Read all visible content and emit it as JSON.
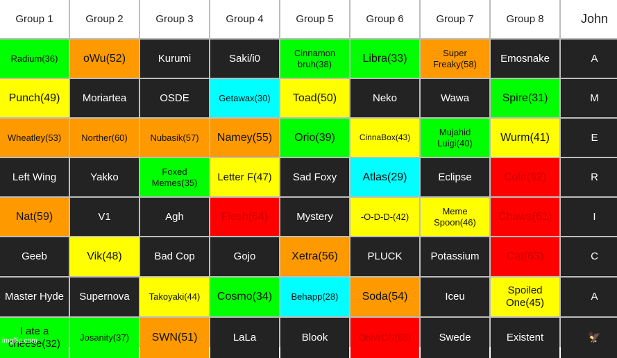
{
  "headers": [
    "Group 1",
    "Group 2",
    "Group 3",
    "Group 4",
    "Group 5",
    "Group 6",
    "Group 7",
    "Group 8",
    "John"
  ],
  "rows": [
    [
      {
        "text": "Radium(36)",
        "color": "green",
        "size": "sm"
      },
      {
        "text": "oWu(52)",
        "color": "orange",
        "size": "lg"
      },
      {
        "text": "Kurumi",
        "color": "dark"
      },
      {
        "text": "Saki/i0",
        "color": "dark"
      },
      {
        "text": "Cinnamon bruh(38)",
        "color": "green",
        "size": "sm"
      },
      {
        "text": "Libra(33)",
        "color": "green",
        "size": "lg"
      },
      {
        "text": "Super Freaky(58)",
        "color": "orange",
        "size": "sm"
      },
      {
        "text": "Emosnake",
        "color": "dark"
      },
      {
        "text": "A",
        "color": "dark"
      }
    ],
    [
      {
        "text": "Punch(49)",
        "color": "yellow",
        "size": "lg"
      },
      {
        "text": "Moriartea",
        "color": "dark"
      },
      {
        "text": "OSDE",
        "color": "dark"
      },
      {
        "text": "Getawax(30)",
        "color": "cyan",
        "size": "sm"
      },
      {
        "text": "Toad(50)",
        "color": "yellow",
        "size": "lg"
      },
      {
        "text": "Neko",
        "color": "dark"
      },
      {
        "text": "Wawa",
        "color": "dark"
      },
      {
        "text": "Spire(31)",
        "color": "green",
        "size": "lg"
      },
      {
        "text": "M",
        "color": "dark"
      }
    ],
    [
      {
        "text": "Wheatley(53)",
        "color": "orange",
        "size": "sm"
      },
      {
        "text": "Norther(60)",
        "color": "orange",
        "size": "sm"
      },
      {
        "text": "Nubasik(57)",
        "color": "orange",
        "size": "sm"
      },
      {
        "text": "Namey(55)",
        "color": "orange",
        "size": "lg"
      },
      {
        "text": "Orio(39)",
        "color": "green",
        "size": "lg"
      },
      {
        "text": "CinnaBox(43)",
        "color": "yellow",
        "size": "xs"
      },
      {
        "text": "Mujahid Luigi(40)",
        "color": "green",
        "size": "sm"
      },
      {
        "text": "Wurm(41)",
        "color": "yellow",
        "size": "lg"
      },
      {
        "text": "E",
        "color": "dark"
      }
    ],
    [
      {
        "text": "Left Wing",
        "color": "dark"
      },
      {
        "text": "Yakko",
        "color": "dark"
      },
      {
        "text": "Foxed Memes(35)",
        "color": "green",
        "size": "sm"
      },
      {
        "text": "Letter F(47)",
        "color": "yellow"
      },
      {
        "text": "Sad Foxy",
        "color": "dark"
      },
      {
        "text": "Atlas(29)",
        "color": "cyan",
        "size": "lg"
      },
      {
        "text": "Eclipse",
        "color": "dark"
      },
      {
        "text": "Cole(62)",
        "color": "red",
        "size": "lg"
      },
      {
        "text": "R",
        "color": "dark"
      }
    ],
    [
      {
        "text": "Nat(59)",
        "color": "orange",
        "size": "lg"
      },
      {
        "text": "V1",
        "color": "dark"
      },
      {
        "text": "Agh",
        "color": "dark"
      },
      {
        "text": "Flesh(64)",
        "color": "red",
        "size": "lg"
      },
      {
        "text": "Mystery",
        "color": "dark"
      },
      {
        "text": "-O-D-D-(42)",
        "color": "yellow",
        "size": "sm"
      },
      {
        "text": "Meme Spoon(46)",
        "color": "yellow",
        "size": "sm"
      },
      {
        "text": "Chaws(61)",
        "color": "red",
        "size": "lg"
      },
      {
        "text": "I",
        "color": "dark"
      }
    ],
    [
      {
        "text": "Geeb",
        "color": "dark"
      },
      {
        "text": "Vik(48)",
        "color": "yellow",
        "size": "lg"
      },
      {
        "text": "Bad Cop",
        "color": "dark"
      },
      {
        "text": "Gojo",
        "color": "dark"
      },
      {
        "text": "Xetra(56)",
        "color": "orange",
        "size": "lg"
      },
      {
        "text": "PLUCK",
        "color": "dark"
      },
      {
        "text": "Potassium",
        "color": "dark"
      },
      {
        "text": "Cat(63)",
        "color": "red",
        "size": "lg"
      },
      {
        "text": "C",
        "color": "dark"
      }
    ],
    [
      {
        "text": "Master Hyde",
        "color": "dark"
      },
      {
        "text": "Supernova",
        "color": "dark"
      },
      {
        "text": "Takoyaki(44)",
        "color": "yellow",
        "size": "sm"
      },
      {
        "text": "Cosmo(34)",
        "color": "green",
        "size": "lg"
      },
      {
        "text": "Behapp(28)",
        "color": "cyan",
        "size": "sm"
      },
      {
        "text": "Soda(54)",
        "color": "orange",
        "size": "lg"
      },
      {
        "text": "Iceu",
        "color": "dark"
      },
      {
        "text": "Spoiled One(45)",
        "color": "yellow"
      },
      {
        "text": "A",
        "color": "dark"
      }
    ],
    [
      {
        "text": "I ate a cheese(32)",
        "color": "green"
      },
      {
        "text": "Josanity(37)",
        "color": "green",
        "size": "sm"
      },
      {
        "text": "SWN(51)",
        "color": "orange",
        "size": "lg"
      },
      {
        "text": "LaLa",
        "color": "dark"
      },
      {
        "text": "Blook",
        "color": "dark"
      },
      {
        "text": "ObiWON(65)",
        "color": "red",
        "size": "sm"
      },
      {
        "text": "Swede",
        "color": "dark"
      },
      {
        "text": "Existent",
        "color": "dark"
      },
      {
        "text": "🦅",
        "color": "dark",
        "icon": "eagle-icon"
      }
    ]
  ],
  "watermark": "imgflip.com",
  "colors": {
    "green": "#00ff00",
    "orange": "#ff9900",
    "yellow": "#ffff00",
    "cyan": "#00ffff",
    "red": "#ff0000",
    "dark": "#232323",
    "header": "#ffffff"
  }
}
